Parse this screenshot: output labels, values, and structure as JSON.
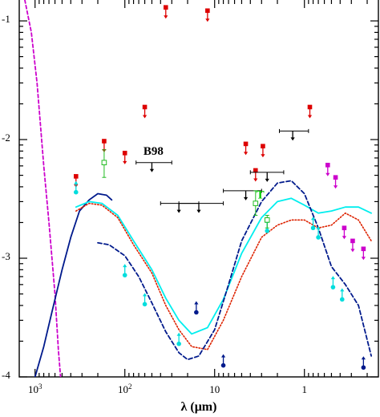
{
  "chart_data": {
    "type": "scatter",
    "x_scale": "log",
    "y_scale": "log",
    "x_reversed": true,
    "xlim": [
      1500,
      0.15
    ],
    "ylim": [
      0.0001,
      0.15
    ],
    "xlabel": "λ (μm)",
    "ylabel": "",
    "x_ticks": [
      {
        "value": 1000,
        "mantissa": "10",
        "exp": "3"
      },
      {
        "value": 100,
        "mantissa": "10",
        "exp": "2"
      },
      {
        "value": 10,
        "mantissa": "10",
        "exp": ""
      },
      {
        "value": 1,
        "mantissa": "1",
        "exp": ""
      }
    ],
    "y_ticks": [
      {
        "value": 0.1,
        "exp": "-1"
      },
      {
        "value": 0.01,
        "exp": "-2"
      },
      {
        "value": 0.001,
        "exp": "-3"
      },
      {
        "value": 0.0001,
        "exp": "-4"
      }
    ],
    "annotations": [
      {
        "text": "B98",
        "x": 48,
        "y": 0.0068,
        "color": "#000000"
      },
      {
        "text": "T",
        "x": 3.1,
        "y": 0.0029,
        "color": "#00cc00"
      }
    ],
    "series": [
      {
        "style": "red-square-upper-limit",
        "color": "#dd0000",
        "points": [
          {
            "x": 350,
            "y": 0.0049
          },
          {
            "x": 170,
            "y": 0.0097
          },
          {
            "x": 100,
            "y": 0.0077
          },
          {
            "x": 60,
            "y": 0.0188
          },
          {
            "x": 35,
            "y": 0.13
          },
          {
            "x": 12,
            "y": 0.122
          },
          {
            "x": 4.5,
            "y": 0.0092
          },
          {
            "x": 2.9,
            "y": 0.0088
          },
          {
            "x": 3.5,
            "y": 0.0055
          },
          {
            "x": 0.87,
            "y": 0.0188
          }
        ]
      },
      {
        "style": "magenta-square-upper-limit",
        "color": "#cc00cc",
        "points": [
          {
            "x": 0.55,
            "y": 0.0061
          },
          {
            "x": 0.45,
            "y": 0.0048
          },
          {
            "x": 0.36,
            "y": 0.0018
          },
          {
            "x": 0.29,
            "y": 0.0014
          },
          {
            "x": 0.22,
            "y": 0.0012
          }
        ]
      },
      {
        "style": "black-upper-limit-with-bar",
        "color": "#000000",
        "points": [
          {
            "x": 50,
            "y": 0.0064,
            "x_lo": 75,
            "x_hi": 30
          },
          {
            "x": 25,
            "y": 0.0029,
            "x_lo": 40,
            "x_hi": 15
          },
          {
            "x": 15,
            "y": 0.0029,
            "x_lo": 25,
            "x_hi": 8
          },
          {
            "x": 4.5,
            "y": 0.0037,
            "x_lo": 8,
            "x_hi": 3
          },
          {
            "x": 2.6,
            "y": 0.0053,
            "x_lo": 4,
            "x_hi": 1.7
          },
          {
            "x": 1.35,
            "y": 0.0118,
            "x_lo": 1.9,
            "x_hi": 0.9
          }
        ]
      },
      {
        "style": "cyan-circle-lower-limit",
        "color": "#00dddd",
        "points": [
          {
            "x": 350,
            "y": 0.0036
          },
          {
            "x": 100,
            "y": 0.00072
          },
          {
            "x": 60,
            "y": 0.00041
          },
          {
            "x": 25,
            "y": 0.00019
          },
          {
            "x": 2.6,
            "y": 0.0017
          },
          {
            "x": 0.8,
            "y": 0.0018
          },
          {
            "x": 0.7,
            "y": 0.0015
          },
          {
            "x": 0.48,
            "y": 0.00057
          },
          {
            "x": 0.38,
            "y": 0.00045
          }
        ]
      },
      {
        "style": "navy-circle-lower-limit",
        "color": "#001a8c",
        "points": [
          {
            "x": 16,
            "y": 0.00035
          },
          {
            "x": 8,
            "y": 0.000125
          },
          {
            "x": 0.22,
            "y": 0.00012
          }
        ]
      },
      {
        "style": "green-open-square-errorbar",
        "color": "#22bb22",
        "points": [
          {
            "x": 170,
            "y": 0.0064,
            "y_lo": 0.0048,
            "y_hi": 0.0082
          },
          {
            "x": 3.5,
            "y": 0.0029,
            "y_lo": 0.0023,
            "y_hi": 0.0037
          },
          {
            "x": 2.6,
            "y": 0.0021,
            "y_lo": 0.0018,
            "y_hi": 0.0023
          }
        ]
      }
    ],
    "curves": [
      {
        "style": "magenta-dashed",
        "color": "#cc00cc",
        "x": [
          1300,
          1100,
          950,
          800,
          700,
          600,
          550,
          520
        ],
        "y": [
          0.15,
          0.08,
          0.03,
          0.006,
          0.002,
          0.0005,
          0.00017,
          0.0001
        ]
      },
      {
        "style": "navy-solid",
        "color": "#001a8c",
        "x": [
          1000,
          800,
          650,
          500,
          400,
          320,
          250,
          200,
          160,
          140
        ],
        "y": [
          0.0001,
          0.00018,
          0.00035,
          0.0008,
          0.0015,
          0.0025,
          0.0031,
          0.0035,
          0.0034,
          0.0031
        ]
      },
      {
        "style": "cyan-solid",
        "color": "#00eeee",
        "x": [
          350,
          250,
          180,
          120,
          80,
          50,
          35,
          25,
          18,
          12,
          8,
          5,
          3,
          2,
          1.4,
          1,
          0.7,
          0.5,
          0.35,
          0.25,
          0.18
        ],
        "y": [
          0.0027,
          0.003,
          0.0029,
          0.0023,
          0.0014,
          0.0008,
          0.00046,
          0.0003,
          0.00023,
          0.00026,
          0.00045,
          0.0011,
          0.0022,
          0.003,
          0.0032,
          0.0028,
          0.0024,
          0.0025,
          0.0027,
          0.0027,
          0.0024
        ]
      },
      {
        "style": "red-dotted",
        "color": "#dd2200",
        "x": [
          350,
          250,
          180,
          120,
          80,
          50,
          35,
          25,
          18,
          12,
          8,
          5,
          3,
          2,
          1.4,
          1,
          0.7,
          0.5,
          0.35,
          0.25,
          0.18
        ],
        "y": [
          0.0025,
          0.0029,
          0.0028,
          0.0022,
          0.0013,
          0.00075,
          0.0004,
          0.00025,
          0.00018,
          0.00017,
          0.0003,
          0.0007,
          0.0015,
          0.0019,
          0.0021,
          0.0021,
          0.0018,
          0.0019,
          0.0024,
          0.0021,
          0.0014
        ]
      },
      {
        "style": "navy-dashed",
        "color": "#001a8c",
        "x": [
          200,
          150,
          100,
          70,
          50,
          35,
          25,
          20,
          15,
          10,
          7,
          5,
          3,
          2,
          1.4,
          1,
          0.7,
          0.5,
          0.35,
          0.25,
          0.18
        ],
        "y": [
          0.00135,
          0.0013,
          0.00105,
          0.0007,
          0.00042,
          0.00024,
          0.00016,
          0.00014,
          0.00015,
          0.00025,
          0.0006,
          0.0014,
          0.003,
          0.0043,
          0.0045,
          0.0035,
          0.0018,
          0.00085,
          0.0006,
          0.0004,
          0.00015
        ]
      }
    ]
  }
}
